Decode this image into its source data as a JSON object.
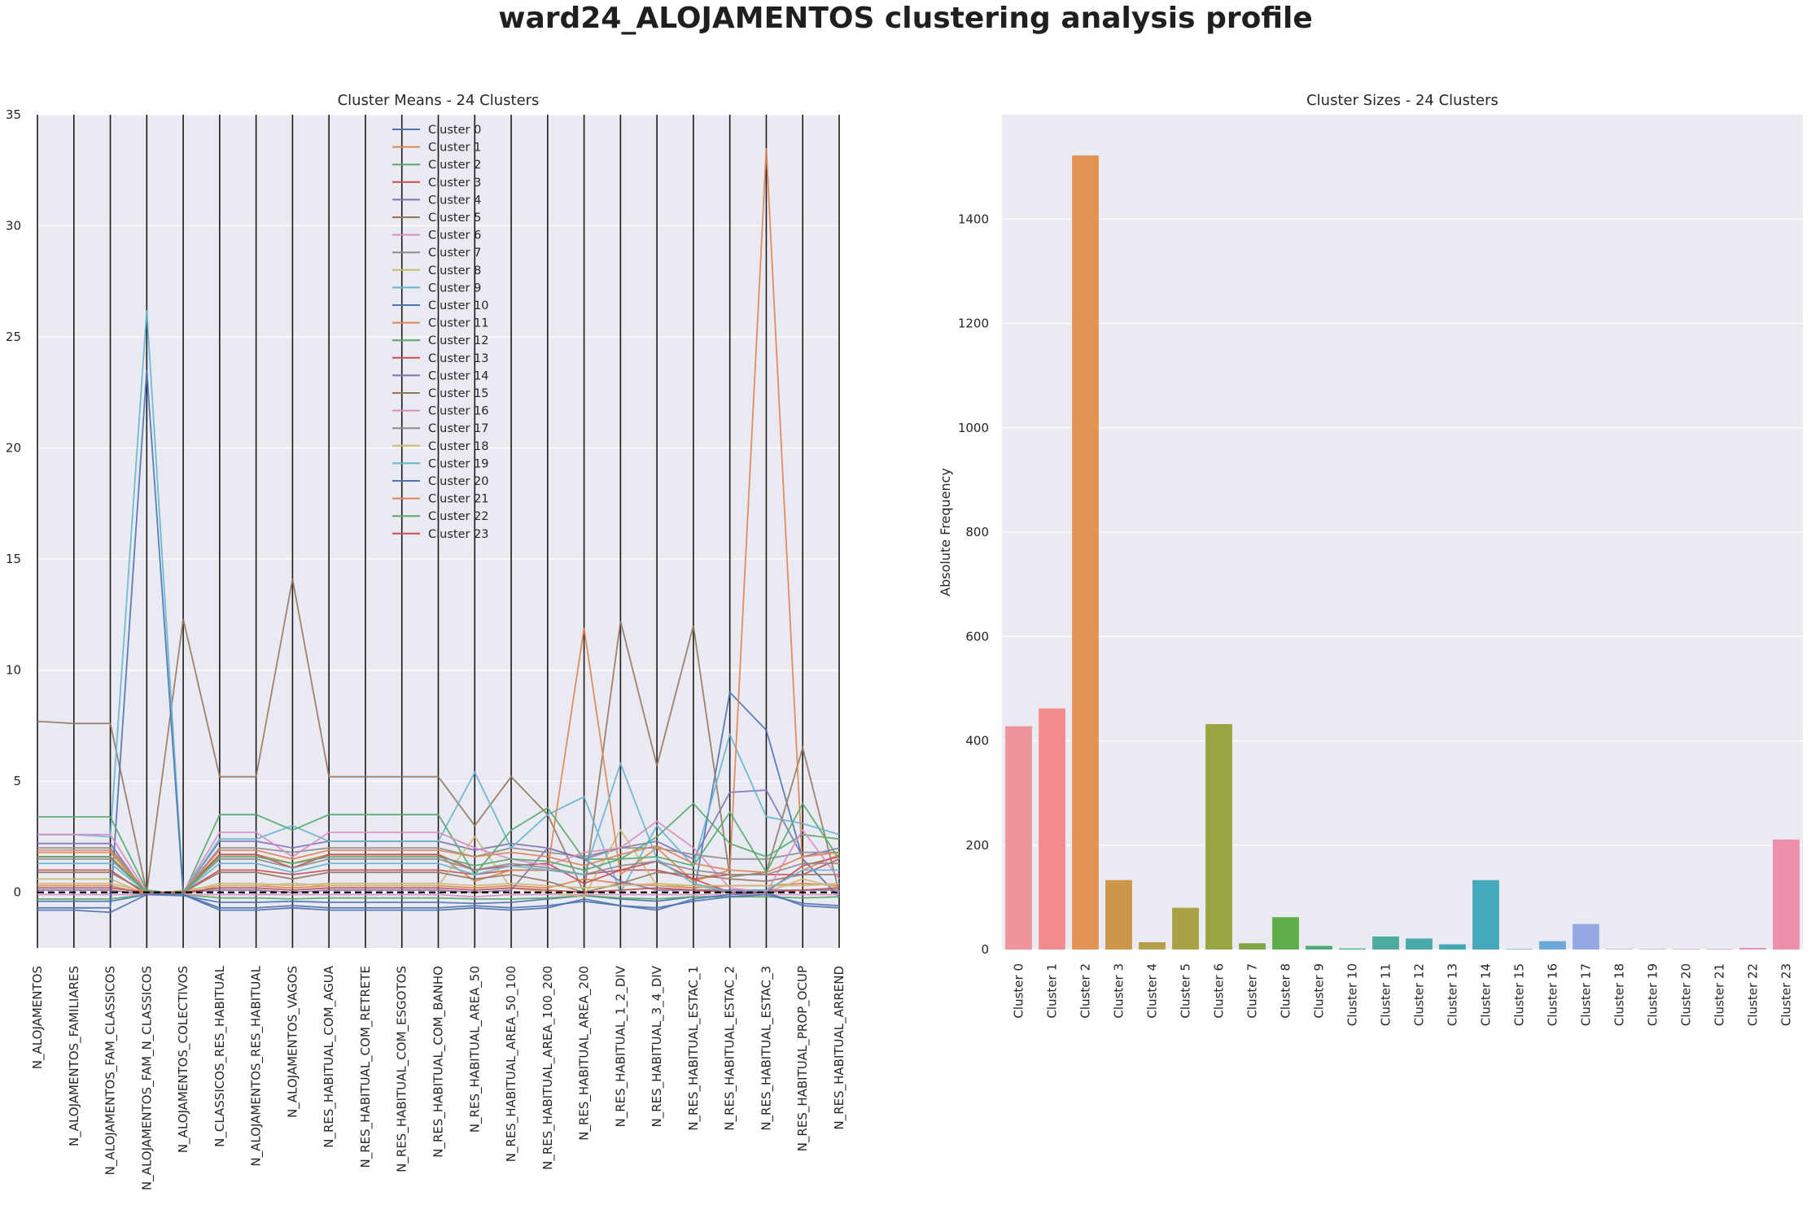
{
  "suptitle": "ward24_ALOJAMENTOS clustering analysis profile",
  "chart_data": [
    {
      "type": "line",
      "title": "Cluster Means - 24 Clusters",
      "ylim": [
        -2.5,
        35
      ],
      "yticks": [
        0,
        5,
        10,
        15,
        20,
        25,
        30,
        35
      ],
      "legend_position": "upper-center",
      "features": [
        "N_ALOJAMENTOS",
        "N_ALOJAMENTOS_FAMILIARES",
        "N_ALOJAMENTOS_FAM_CLASSICOS",
        "N_ALOJAMENTOS_FAM_N_CLASSICOS",
        "N_ALOJAMENTOS_COLECTIVOS",
        "N_CLASSICOS_RES_HABITUAL",
        "N_ALOJAMENTOS_RES_HABITUAL",
        "N_ALOJAMENTOS_VAGOS",
        "N_RES_HABITUAL_COM_AGUA",
        "N_RES_HABITUAL_COM_RETRETE",
        "N_RES_HABITUAL_COM_ESGOTOS",
        "N_RES_HABITUAL_COM_BANHO",
        "N_RES_HABITUAL_AREA_50",
        "N_RES_HABITUAL_AREA_50_100",
        "N_RES_HABITUAL_AREA_100_200",
        "N_RES_HABITUAL_AREA_200",
        "N_RES_HABITUAL_1_2_DIV",
        "N_RES_HABITUAL_3_4_DIV",
        "N_RES_HABITUAL_ESTAC_1",
        "N_RES_HABITUAL_ESTAC_2",
        "N_RES_HABITUAL_ESTAC_3",
        "N_RES_HABITUAL_PROP_OCUP",
        "N_RES_HABITUAL_ARREND"
      ],
      "series": [
        {
          "name": "Cluster 0",
          "color": "#4c72b0",
          "values": [
            -0.4,
            -0.4,
            -0.4,
            -0.1,
            -0.15,
            -0.45,
            -0.45,
            -0.4,
            -0.45,
            -0.45,
            -0.45,
            -0.45,
            -0.5,
            -0.45,
            -0.3,
            -0.15,
            -0.3,
            -0.4,
            -0.2,
            9.0,
            7.3,
            1.5,
            -0.2
          ]
        },
        {
          "name": "Cluster 1",
          "color": "#dd8452",
          "values": [
            0.3,
            0.3,
            0.3,
            -0.1,
            -0.1,
            0.3,
            0.3,
            0.2,
            0.3,
            0.3,
            0.3,
            0.3,
            0.2,
            0.3,
            0.2,
            0.6,
            0.4,
            0.3,
            0.2,
            0.3,
            0.3,
            0.4,
            0.3
          ]
        },
        {
          "name": "Cluster 2",
          "color": "#55a868",
          "values": [
            -0.3,
            -0.3,
            -0.3,
            -0.1,
            -0.1,
            -0.25,
            -0.25,
            -0.3,
            -0.25,
            -0.25,
            -0.25,
            -0.25,
            -0.3,
            -0.3,
            -0.25,
            -0.15,
            -0.25,
            -0.3,
            -0.2,
            -0.2,
            -0.2,
            -0.25,
            -0.2
          ]
        },
        {
          "name": "Cluster 3",
          "color": "#c44e52",
          "values": [
            1.0,
            1.0,
            1.0,
            -0.1,
            0.0,
            1.0,
            1.0,
            0.8,
            1.0,
            1.0,
            1.0,
            1.0,
            0.8,
            1.0,
            1.0,
            0.8,
            1.0,
            1.0,
            0.6,
            0.8,
            0.8,
            0.8,
            1.5
          ]
        },
        {
          "name": "Cluster 4",
          "color": "#8172b3",
          "values": [
            2.2,
            2.2,
            2.2,
            -0.1,
            0.0,
            2.3,
            2.3,
            2.0,
            2.3,
            2.3,
            2.3,
            2.3,
            1.9,
            2.2,
            2.0,
            1.5,
            2.0,
            2.3,
            1.5,
            4.5,
            4.6,
            1.6,
            2.0
          ]
        },
        {
          "name": "Cluster 5",
          "color": "#937860",
          "values": [
            7.7,
            7.6,
            7.6,
            0.0,
            12.3,
            5.2,
            5.2,
            14.1,
            5.2,
            5.2,
            5.2,
            5.2,
            3.0,
            5.2,
            3.5,
            0.0,
            12.2,
            5.7,
            12.0,
            0.7,
            0.9,
            6.5,
            0.0
          ]
        },
        {
          "name": "Cluster 6",
          "color": "#da8bc3",
          "values": [
            -0.1,
            -0.1,
            -0.1,
            -0.1,
            -0.1,
            -0.1,
            -0.1,
            -0.1,
            -0.1,
            -0.1,
            -0.1,
            -0.1,
            -0.2,
            -0.1,
            -0.1,
            -0.1,
            -0.1,
            -0.1,
            -0.1,
            -0.1,
            -0.1,
            -0.1,
            -0.1
          ]
        },
        {
          "name": "Cluster 7",
          "color": "#8c8c8c",
          "values": [
            2.0,
            2.0,
            2.0,
            0.0,
            0.0,
            2.0,
            2.0,
            1.8,
            2.0,
            2.0,
            2.0,
            2.0,
            1.6,
            2.0,
            1.8,
            1.6,
            2.0,
            2.0,
            1.7,
            1.5,
            1.5,
            1.8,
            1.8
          ]
        },
        {
          "name": "Cluster 8",
          "color": "#ccb974",
          "values": [
            0.6,
            0.6,
            0.6,
            -0.1,
            0.1,
            0.3,
            0.3,
            0.4,
            0.3,
            0.3,
            0.3,
            0.3,
            2.5,
            0.2,
            0.0,
            -0.2,
            2.8,
            0.3,
            0.3,
            0.0,
            0.0,
            0.6,
            0.2
          ]
        },
        {
          "name": "Cluster 9",
          "color": "#64b5cd",
          "values": [
            2.6,
            2.6,
            2.5,
            26.2,
            0.0,
            2.4,
            2.4,
            3.0,
            2.3,
            2.3,
            2.3,
            2.3,
            5.4,
            2.0,
            3.5,
            4.3,
            0.0,
            3.0,
            1.2,
            7.1,
            3.4,
            3.1,
            2.6
          ]
        },
        {
          "name": "Cluster 10",
          "color": "#4c72b0",
          "values": [
            -0.7,
            -0.7,
            -0.7,
            23.5,
            -0.1,
            -0.7,
            -0.7,
            -0.6,
            -0.7,
            -0.7,
            -0.7,
            -0.7,
            -0.6,
            -0.7,
            -0.6,
            -0.4,
            -0.6,
            -0.7,
            -0.4,
            -0.2,
            -0.1,
            -0.5,
            -0.6
          ]
        },
        {
          "name": "Cluster 11",
          "color": "#dd8452",
          "values": [
            1.8,
            1.8,
            1.8,
            0.0,
            0.0,
            1.7,
            1.7,
            1.3,
            1.7,
            1.7,
            1.7,
            1.7,
            0.5,
            1.0,
            1.0,
            11.9,
            0.8,
            2.0,
            0.5,
            1.0,
            33.5,
            1.0,
            1.7
          ]
        },
        {
          "name": "Cluster 12",
          "color": "#55a868",
          "values": [
            3.4,
            3.4,
            3.4,
            0.1,
            -0.1,
            3.5,
            3.5,
            2.8,
            3.5,
            3.5,
            3.5,
            3.5,
            0.8,
            2.8,
            3.8,
            1.5,
            1.5,
            2.5,
            4.0,
            2.2,
            1.6,
            2.6,
            2.4
          ]
        },
        {
          "name": "Cluster 13",
          "color": "#c44e52",
          "values": [
            1.6,
            1.6,
            1.6,
            0.0,
            0.0,
            1.7,
            1.7,
            1.1,
            1.7,
            1.7,
            1.7,
            1.7,
            1.0,
            1.2,
            1.3,
            0.4,
            1.0,
            1.4,
            0.6,
            0.0,
            0.0,
            1.2,
            1.6
          ]
        },
        {
          "name": "Cluster 14",
          "color": "#8172b3",
          "values": [
            0.1,
            0.1,
            0.1,
            -0.1,
            0.0,
            0.1,
            0.1,
            0.0,
            0.1,
            0.1,
            0.1,
            0.1,
            0.0,
            0.1,
            2.0,
            1.5,
            0.5,
            0.1,
            0.1,
            0.1,
            0.1,
            0.1,
            0.1
          ]
        },
        {
          "name": "Cluster 15",
          "color": "#937860",
          "values": [
            0.9,
            0.9,
            0.9,
            0.0,
            0.0,
            0.9,
            0.9,
            0.6,
            0.9,
            0.9,
            0.9,
            0.9,
            0.6,
            0.8,
            0.5,
            0.0,
            0.4,
            0.9,
            0.8,
            0.6,
            0.5,
            0.8,
            0.8
          ]
        },
        {
          "name": "Cluster 16",
          "color": "#da8bc3",
          "values": [
            2.6,
            2.6,
            2.6,
            0.0,
            0.0,
            2.7,
            2.7,
            1.6,
            2.7,
            2.7,
            2.7,
            2.7,
            2.0,
            1.5,
            1.2,
            1.8,
            2.0,
            3.2,
            2.0,
            0.2,
            0.0,
            2.8,
            0.6
          ]
        },
        {
          "name": "Cluster 17",
          "color": "#8c8c8c",
          "values": [
            1.5,
            1.5,
            1.5,
            0.0,
            0.0,
            1.5,
            1.5,
            1.1,
            1.5,
            1.5,
            1.5,
            1.5,
            1.0,
            1.3,
            1.1,
            0.8,
            1.2,
            1.4,
            1.0,
            0.8,
            0.8,
            1.3,
            1.3
          ]
        },
        {
          "name": "Cluster 18",
          "color": "#ccb974",
          "values": [
            0.4,
            0.4,
            0.4,
            0.0,
            0.0,
            0.4,
            0.4,
            0.3,
            0.4,
            0.4,
            0.4,
            0.4,
            0.3,
            0.4,
            0.3,
            0.2,
            0.3,
            0.4,
            0.3,
            0.3,
            0.3,
            0.3,
            0.4
          ]
        },
        {
          "name": "Cluster 19",
          "color": "#64b5cd",
          "values": [
            1.3,
            1.3,
            1.3,
            0.0,
            0.0,
            1.3,
            1.3,
            0.9,
            1.3,
            1.3,
            1.3,
            1.3,
            0.8,
            1.2,
            1.0,
            0.8,
            5.8,
            1.5,
            0.4,
            0.0,
            0.1,
            1.0,
            1.0
          ]
        },
        {
          "name": "Cluster 20",
          "color": "#4c72b0",
          "values": [
            -0.8,
            -0.8,
            -0.9,
            -0.1,
            -0.1,
            -0.8,
            -0.8,
            -0.7,
            -0.8,
            -0.8,
            -0.8,
            -0.8,
            -0.7,
            -0.8,
            -0.7,
            -0.3,
            -0.6,
            -0.8,
            -0.3,
            -0.1,
            0.0,
            -0.6,
            -0.7
          ]
        },
        {
          "name": "Cluster 21",
          "color": "#dd8452",
          "values": [
            1.9,
            1.9,
            1.9,
            0.0,
            0.0,
            1.9,
            1.9,
            1.5,
            1.9,
            1.9,
            1.9,
            1.9,
            1.6,
            1.8,
            1.6,
            1.2,
            1.7,
            2.1,
            1.3,
            1.0,
            0.9,
            1.6,
            1.8
          ]
        },
        {
          "name": "Cluster 22",
          "color": "#55a868",
          "values": [
            1.6,
            1.6,
            1.6,
            0.0,
            0.0,
            1.6,
            1.6,
            1.3,
            1.6,
            1.6,
            1.6,
            1.6,
            1.2,
            1.5,
            1.4,
            1.0,
            1.5,
            1.6,
            1.2,
            3.6,
            0.9,
            4.0,
            1.5
          ]
        },
        {
          "name": "Cluster 23",
          "color": "#c44e52",
          "values": [
            0.2,
            0.2,
            0.2,
            0.0,
            0.0,
            0.2,
            0.2,
            0.1,
            0.2,
            0.2,
            0.2,
            0.2,
            0.1,
            0.2,
            0.1,
            0.0,
            0.1,
            0.2,
            0.1,
            0.0,
            0.0,
            0.1,
            0.2
          ]
        }
      ]
    },
    {
      "type": "bar",
      "title": "Cluster Sizes - 24 Clusters",
      "ylabel": "Absolute Frequency",
      "ylim": [
        0,
        1600
      ],
      "yticks": [
        0,
        200,
        400,
        600,
        800,
        1000,
        1200,
        1400
      ],
      "categories": [
        "Cluster 0",
        "Cluster 1",
        "Cluster 2",
        "Cluster 3",
        "Cluster 4",
        "Cluster 5",
        "Cluster 6",
        "Cluster 7",
        "Cluster 8",
        "Cluster 9",
        "Cluster 10",
        "Cluster 11",
        "Cluster 12",
        "Cluster 13",
        "Cluster 14",
        "Cluster 15",
        "Cluster 16",
        "Cluster 17",
        "Cluster 18",
        "Cluster 19",
        "Cluster 20",
        "Cluster 21",
        "Cluster 22",
        "Cluster 23"
      ],
      "values": [
        428,
        462,
        1522,
        133,
        14,
        80,
        432,
        12,
        62,
        7,
        2,
        25,
        21,
        10,
        133,
        1,
        16,
        49,
        1,
        1,
        1,
        1,
        3,
        211
      ],
      "colors": [
        "#f0949c",
        "#f28c8c",
        "#e39352",
        "#cd9649",
        "#b79d48",
        "#a9a143",
        "#9aa440",
        "#82a646",
        "#5fae4b",
        "#4cab74",
        "#48ad92",
        "#4aab9e",
        "#45aaa8",
        "#41a8b2",
        "#46a9bb",
        "#52a6c8",
        "#6ba8d7",
        "#95a8e6",
        "#b39ee6",
        "#cc94e0",
        "#df8bd6",
        "#e989c6",
        "#ec8ab6",
        "#ee8fac"
      ]
    }
  ]
}
